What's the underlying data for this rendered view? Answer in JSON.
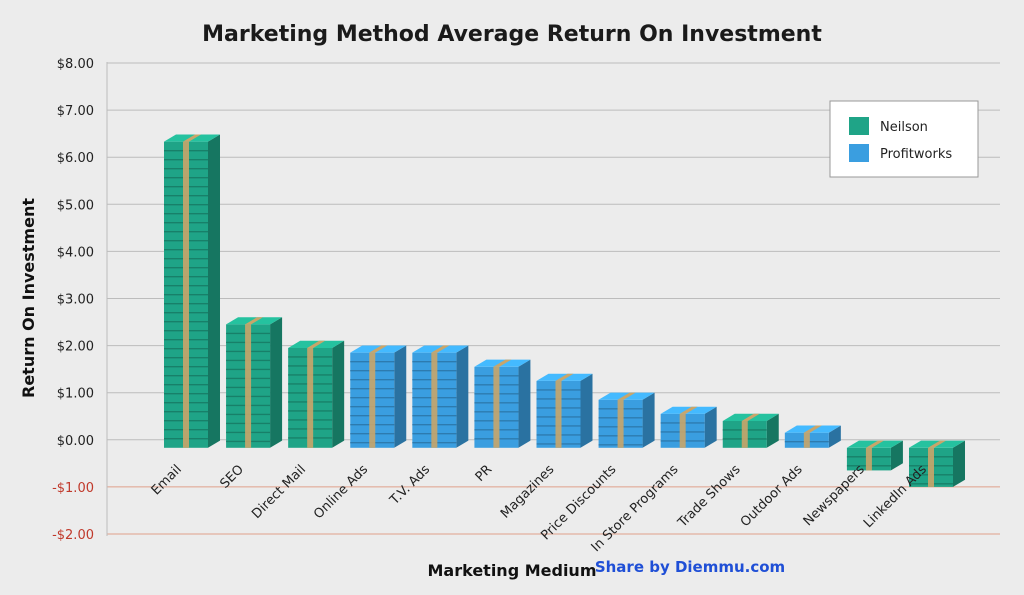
{
  "chart_data": {
    "type": "bar",
    "title": "Marketing Method Average Return On Investment",
    "xlabel": "Marketing Medium",
    "ylabel": "Return On Investment",
    "ylim": [
      -2,
      8
    ],
    "yticks": [
      8,
      7,
      6,
      5,
      4,
      3,
      2,
      1,
      0,
      -1,
      -2
    ],
    "ytick_labels": [
      "$8.00",
      "$7.00",
      "$6.00",
      "$5.00",
      "$4.00",
      "$3.00",
      "$2.00",
      "$1.00",
      "$0.00",
      "-$1.00",
      "-$2.00"
    ],
    "grid": true,
    "legend_position": "top-right",
    "categories": [
      "Email",
      "SEO",
      "Direct Mail",
      "Online Ads",
      "T.V. Ads",
      "PR",
      "Magazines",
      "Price Discounts",
      "In Store Programs",
      "Trade Shows",
      "Outdoor Ads",
      "Newspapers",
      "LinkedIn Ads"
    ],
    "values": [
      6.33,
      2.45,
      1.95,
      1.85,
      1.85,
      1.55,
      1.25,
      0.85,
      0.55,
      0.4,
      0.15,
      -0.65,
      -1.0
    ],
    "sources": [
      "Neilson",
      "Neilson",
      "Neilson",
      "Profitworks",
      "Profitworks",
      "Profitworks",
      "Profitworks",
      "Profitworks",
      "Profitworks",
      "Neilson",
      "Profitworks",
      "Neilson",
      "Neilson"
    ],
    "series": [
      {
        "name": "Neilson",
        "color": "#1fa487"
      },
      {
        "name": "Profitworks",
        "color": "#3a9ee0"
      }
    ]
  },
  "watermark": "Share by Diemmu.com",
  "colors": {
    "band": "#c9a56a",
    "negative_line": "#e0a08a",
    "grid": "#bcbcbc"
  }
}
